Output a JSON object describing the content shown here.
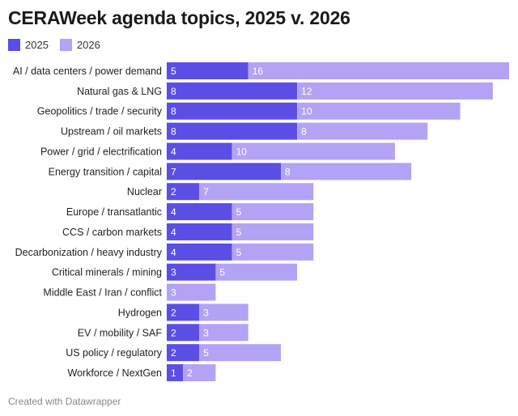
{
  "title": "CERAWeek agenda topics, 2025 v. 2026",
  "footer": "Created with Datawrapper",
  "colors": {
    "series_2025": "#5b4ee5",
    "series_2026": "#b3a3f5"
  },
  "chart_data": {
    "type": "bar",
    "orientation": "horizontal",
    "stacked": true,
    "legend_position": "top-left",
    "categories": [
      "AI / data centers / power demand",
      "Natural gas & LNG",
      "Geopolitics / trade / security",
      "Upstream / oil markets",
      "Power / grid / electrification",
      "Energy transition / capital",
      "Nuclear",
      "Europe / transatlantic",
      "CCS / carbon markets",
      "Decarbonization / heavy industry",
      "Critical minerals / mining",
      "Middle East / Iran / conflict",
      "Hydrogen",
      "EV / mobility / SAF",
      "US policy / regulatory",
      "Workforce / NextGen"
    ],
    "series": [
      {
        "name": "2025",
        "values": [
          5,
          8,
          8,
          8,
          4,
          7,
          2,
          4,
          4,
          4,
          3,
          0,
          2,
          2,
          2,
          1
        ]
      },
      {
        "name": "2026",
        "values": [
          16,
          12,
          10,
          8,
          10,
          8,
          7,
          5,
          5,
          5,
          5,
          3,
          3,
          3,
          5,
          2
        ]
      }
    ],
    "xlim": [
      0,
      21
    ]
  }
}
